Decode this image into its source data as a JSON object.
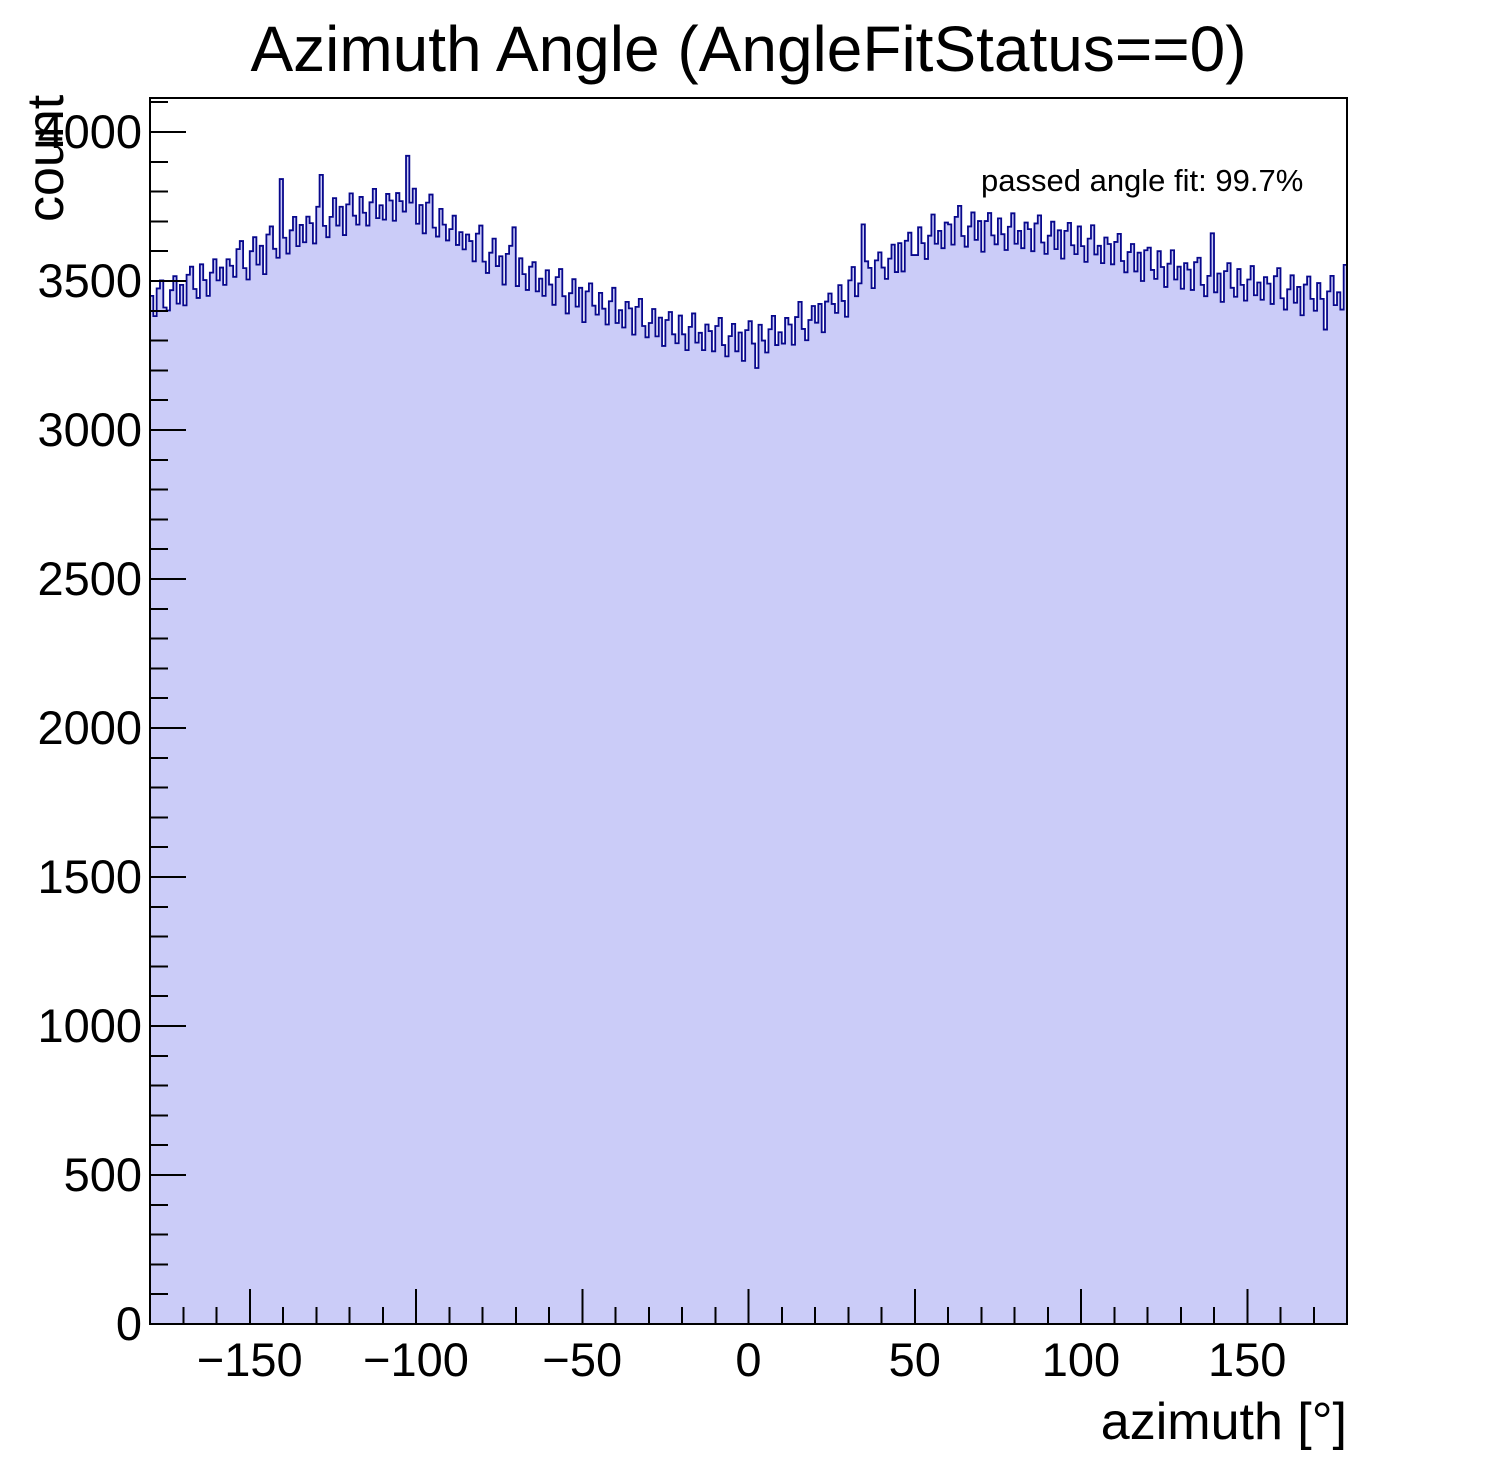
{
  "colors": {
    "fill": "#cbccf8",
    "line": "#08088c",
    "axis": "#000000",
    "background": "#ffffff",
    "text": "#000000"
  },
  "annotation": "passed angle fit: 99.7%",
  "chart_data": {
    "type": "bar",
    "title": "Azimuth Angle (AngleFitStatus==0)",
    "xlabel": "azimuth [°]",
    "ylabel": "count",
    "xlim": [
      -180,
      180
    ],
    "ylim": [
      0,
      4114
    ],
    "bin_width_deg": 1,
    "grid": false,
    "legend": null,
    "x_major_ticks": [
      -150,
      -100,
      -50,
      0,
      50,
      100,
      150
    ],
    "x_minor_step": 10,
    "y_major_ticks": [
      0,
      500,
      1000,
      1500,
      2000,
      2500,
      3000,
      3500,
      4000
    ],
    "y_minor_step": 100,
    "annotation": "passed angle fit: 99.7%",
    "values": [
      3450,
      3382,
      3475,
      3502,
      3411,
      3401,
      3469,
      3516,
      3424,
      3487,
      3418,
      3521,
      3548,
      3473,
      3443,
      3556,
      3503,
      3450,
      3528,
      3573,
      3502,
      3545,
      3487,
      3573,
      3551,
      3514,
      3607,
      3634,
      3543,
      3505,
      3600,
      3647,
      3555,
      3618,
      3523,
      3656,
      3683,
      3608,
      3578,
      3842,
      3645,
      3592,
      3670,
      3715,
      3617,
      3688,
      3630,
      3716,
      3694,
      3626,
      3749,
      3856,
      3685,
      3647,
      3715,
      3778,
      3686,
      3749,
      3654,
      3757,
      3794,
      3719,
      3689,
      3782,
      3729,
      3686,
      3764,
      3809,
      3711,
      3754,
      3706,
      3792,
      3770,
      3702,
      3795,
      3768,
      3733,
      3920,
      3763,
      3810,
      3692,
      3755,
      3660,
      3763,
      3790,
      3679,
      3649,
      3742,
      3689,
      3636,
      3674,
      3719,
      3621,
      3664,
      3606,
      3656,
      3634,
      3566,
      3659,
      3686,
      3565,
      3527,
      3595,
      3642,
      3550,
      3583,
      3488,
      3591,
      3618,
      3680,
      3483,
      3576,
      3523,
      3470,
      3548,
      3563,
      3465,
      3508,
      3450,
      3536,
      3488,
      3420,
      3513,
      3540,
      3449,
      3391,
      3459,
      3506,
      3414,
      3477,
      3362,
      3465,
      3492,
      3417,
      3387,
      3460,
      3407,
      3354,
      3432,
      3477,
      3359,
      3402,
      3344,
      3430,
      3408,
      3320,
      3413,
      3440,
      3349,
      3311,
      3359,
      3406,
      3314,
      3377,
      3282,
      3369,
      3396,
      3321,
      3291,
      3384,
      3321,
      3268,
      3346,
      3391,
      3293,
      3326,
      3268,
      3354,
      3332,
      3264,
      3349,
      3376,
      3285,
      3247,
      3315,
      3356,
      3264,
      3327,
      3232,
      3335,
      3365,
      3290,
      3208,
      3353,
      3300,
      3260,
      3338,
      3383,
      3285,
      3328,
      3290,
      3376,
      3354,
      3286,
      3379,
      3430,
      3339,
      3301,
      3369,
      3416,
      3360,
      3423,
      3328,
      3431,
      3458,
      3423,
      3393,
      3486,
      3433,
      3380,
      3502,
      3547,
      3449,
      3492,
      3690,
      3566,
      3544,
      3476,
      3569,
      3596,
      3545,
      3507,
      3575,
      3622,
      3530,
      3627,
      3532,
      3635,
      3662,
      3587,
      3587,
      3680,
      3627,
      3574,
      3652,
      3723,
      3625,
      3668,
      3610,
      3696,
      3690,
      3622,
      3715,
      3752,
      3651,
      3615,
      3683,
      3730,
      3638,
      3701,
      3598,
      3701,
      3728,
      3653,
      3623,
      3710,
      3657,
      3604,
      3682,
      3727,
      3625,
      3668,
      3610,
      3696,
      3674,
      3600,
      3693,
      3720,
      3629,
      3591,
      3652,
      3699,
      3607,
      3670,
      3575,
      3668,
      3695,
      3620,
      3590,
      3683,
      3617,
      3564,
      3642,
      3687,
      3589,
      3618,
      3560,
      3646,
      3624,
      3556,
      3631,
      3658,
      3567,
      3529,
      3597,
      3624,
      3532,
      3595,
      3500,
      3603,
      3612,
      3537,
      3507,
      3600,
      3547,
      3480,
      3558,
      3603,
      3505,
      3548,
      3474,
      3560,
      3538,
      3470,
      3563,
      3578,
      3487,
      3449,
      3517,
      3660,
      3462,
      3525,
      3430,
      3533,
      3560,
      3477,
      3447,
      3540,
      3487,
      3434,
      3505,
      3550,
      3452,
      3495,
      3437,
      3513,
      3491,
      3423,
      3516,
      3543,
      3442,
      3404,
      3472,
      3519,
      3427,
      3480,
      3385,
      3488,
      3515,
      3440,
      3400,
      3493,
      3440,
      3337,
      3465,
      3517,
      3419,
      3462,
      3404,
      3554
    ]
  }
}
